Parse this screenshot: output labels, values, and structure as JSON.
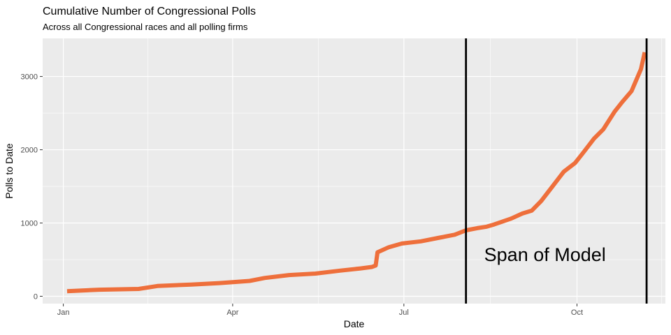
{
  "chart_data": {
    "type": "line",
    "title": "Cumulative Number of Congressional Polls",
    "subtitle": "Across all Congressional races and all polling firms",
    "xlabel": "Date",
    "ylabel": "Polls to Date",
    "x_ticks": [
      "Jan",
      "Apr",
      "Jul",
      "Oct"
    ],
    "x_tick_dates": [
      "2018-01-01",
      "2018-04-01",
      "2018-07-01",
      "2018-10-01"
    ],
    "y_ticks": [
      0,
      1000,
      2000,
      3000
    ],
    "xlim": [
      "2017-12-21",
      "2018-11-17"
    ],
    "ylim": [
      -100,
      3520
    ],
    "grid": true,
    "series": [
      {
        "color": "#ee6f3b",
        "x": [
          "2018-01-03",
          "2018-01-20",
          "2018-02-10",
          "2018-02-20",
          "2018-03-10",
          "2018-03-25",
          "2018-04-05",
          "2018-04-10",
          "2018-04-18",
          "2018-05-01",
          "2018-05-15",
          "2018-05-28",
          "2018-06-08",
          "2018-06-14",
          "2018-06-16",
          "2018-06-17",
          "2018-06-23",
          "2018-06-30",
          "2018-07-10",
          "2018-07-20",
          "2018-07-28",
          "2018-08-03",
          "2018-08-09",
          "2018-08-14",
          "2018-08-18",
          "2018-08-27",
          "2018-09-02",
          "2018-09-07",
          "2018-09-12",
          "2018-09-18",
          "2018-09-24",
          "2018-09-30",
          "2018-10-04",
          "2018-10-10",
          "2018-10-15",
          "2018-10-21",
          "2018-10-25",
          "2018-10-30",
          "2018-11-04",
          "2018-11-06"
        ],
        "values": [
          70,
          90,
          100,
          140,
          160,
          180,
          200,
          210,
          250,
          290,
          310,
          350,
          380,
          400,
          420,
          600,
          670,
          720,
          750,
          800,
          840,
          900,
          930,
          950,
          980,
          1060,
          1130,
          1170,
          1300,
          1500,
          1700,
          1820,
          1950,
          2150,
          2280,
          2520,
          2650,
          2800,
          3100,
          3330
        ]
      }
    ],
    "annotations": [
      {
        "type": "vline",
        "x": "2018-08-03",
        "color": "#000000"
      },
      {
        "type": "vline",
        "x": "2018-11-07",
        "color": "#000000"
      },
      {
        "type": "text",
        "text": "Span of Model",
        "x": "2018-09-14",
        "y": 480
      }
    ],
    "colors": {
      "panel_background": "#ebebeb",
      "grid": "#ffffff",
      "line": "#ee6f3b",
      "vline": "#000000"
    }
  }
}
